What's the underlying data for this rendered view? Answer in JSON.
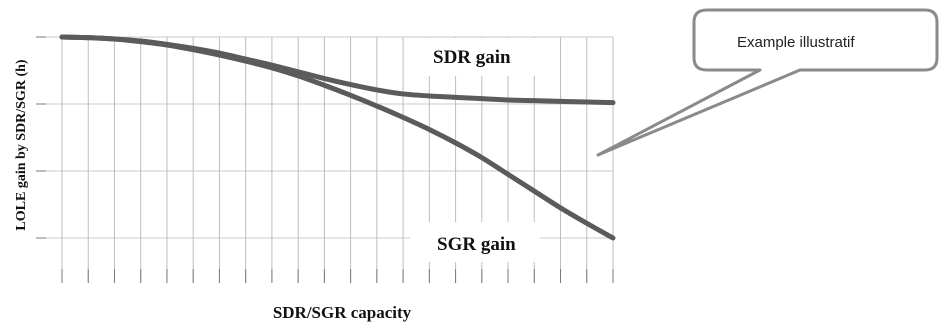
{
  "chart_data": {
    "type": "line",
    "title": "",
    "xlabel": "SDR/SGR capacity",
    "ylabel": "LOLE gain by SDR/SGR (h)",
    "grid": true,
    "x": [
      0,
      1,
      2,
      3,
      4,
      5,
      6,
      7,
      8,
      9,
      10,
      11,
      12,
      13,
      14,
      15,
      16,
      17,
      18,
      19,
      20,
      21
    ],
    "xlim": [
      0,
      21
    ],
    "ylim": [
      -3.05,
      0.05
    ],
    "series": [
      {
        "name": "SDR gain",
        "values": [
          0,
          -0.01,
          -0.03,
          -0.06,
          -0.11,
          -0.17,
          -0.24,
          -0.33,
          -0.42,
          -0.52,
          -0.62,
          -0.71,
          -0.79,
          -0.85,
          -0.88,
          -0.9,
          -0.92,
          -0.94,
          -0.95,
          -0.96,
          -0.97,
          -0.98
        ]
      },
      {
        "name": "SGR gain",
        "values": [
          0,
          -0.01,
          -0.03,
          -0.07,
          -0.12,
          -0.19,
          -0.27,
          -0.36,
          -0.46,
          -0.58,
          -0.72,
          -0.87,
          -1.03,
          -1.2,
          -1.38,
          -1.58,
          -1.8,
          -2.05,
          -2.3,
          -2.55,
          -2.78,
          -3.0
        ]
      }
    ],
    "annotation": "Example illustratif"
  }
}
